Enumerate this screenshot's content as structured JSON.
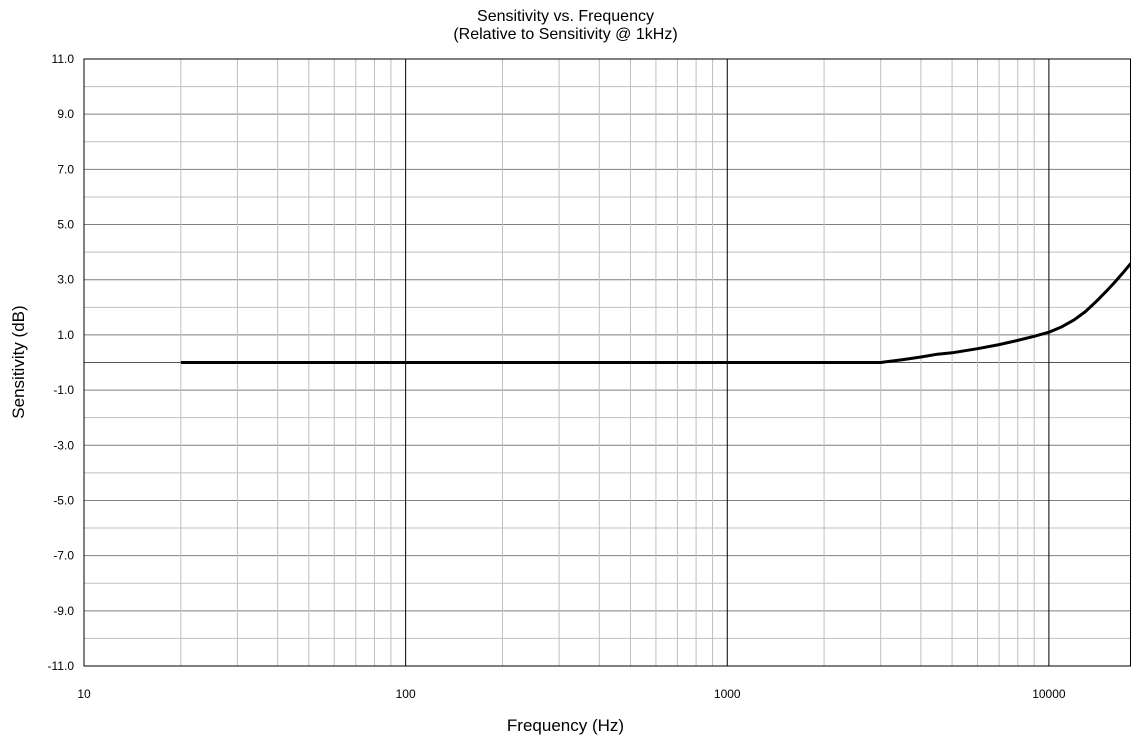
{
  "chart_data": {
    "type": "line",
    "title": "Sensitivity vs. Frequency",
    "subtitle": "(Relative to Sensitivity @ 1kHz)",
    "xlabel": "Frequency (Hz)",
    "ylabel": "Sensitivity (dB)",
    "x_scale": "log",
    "xlim": [
      10,
      18000
    ],
    "ylim": [
      -11,
      11
    ],
    "x_ticks": [
      10,
      100,
      1000,
      10000
    ],
    "x_tick_labels": [
      "10",
      "100",
      "1000",
      "10000"
    ],
    "y_ticks": [
      11,
      9,
      7,
      5,
      3,
      1,
      -1,
      -3,
      -5,
      -7,
      -9,
      -11
    ],
    "y_tick_labels": [
      "11.0",
      "9.0",
      "7.0",
      "5.0",
      "3.0",
      "1.0",
      "-1.0",
      "-3.0",
      "-5.0",
      "-7.0",
      "-9.0",
      "-11.0"
    ],
    "grid": true,
    "legend": "none",
    "series": [
      {
        "color": "#000000",
        "x": [
          20,
          100,
          1000,
          2000,
          3000,
          3500,
          4000,
          4500,
          5000,
          6000,
          7000,
          8000,
          9000,
          10000,
          11000,
          12000,
          13000,
          14000,
          15000,
          16000,
          17000,
          18000
        ],
        "y": [
          0,
          0,
          0,
          0,
          0,
          0.1,
          0.2,
          0.3,
          0.35,
          0.5,
          0.65,
          0.8,
          0.95,
          1.1,
          1.3,
          1.55,
          1.85,
          2.2,
          2.55,
          2.9,
          3.25,
          3.6
        ]
      }
    ]
  }
}
